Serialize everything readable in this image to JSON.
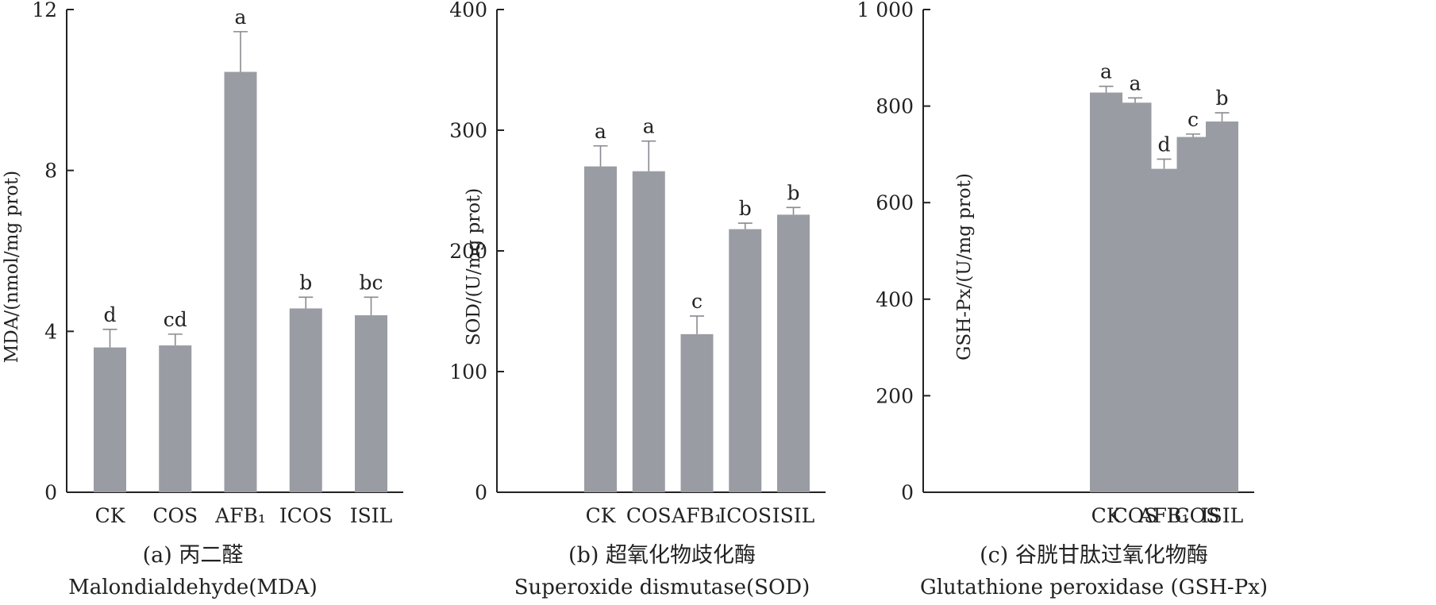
{
  "chart_data": [
    {
      "type": "bar",
      "categories": [
        "CK",
        "COS",
        "AFB₁",
        "ICOS",
        "ISIL"
      ],
      "values": [
        3.6,
        3.65,
        10.45,
        4.57,
        4.4
      ],
      "errors": [
        0.45,
        0.28,
        1.0,
        0.28,
        0.45
      ],
      "letters": [
        "d",
        "cd",
        "a",
        "b",
        "bc"
      ],
      "ylabel": "MDA/(nmol/mg prot)",
      "ylim": [
        0,
        12
      ],
      "yticks": [
        "0",
        "4",
        "8",
        "12"
      ],
      "caption_cn": "(a) 丙二醛",
      "caption_en": "Malondialdehyde(MDA)",
      "bar_color": "#9a9ca3"
    },
    {
      "type": "bar",
      "categories": [
        "CK",
        "COS",
        "AFB₁",
        "ICOS",
        "ISIL"
      ],
      "values": [
        270,
        266,
        131,
        218,
        230
      ],
      "errors": [
        17,
        25,
        15,
        5,
        6
      ],
      "letters": [
        "a",
        "a",
        "c",
        "b",
        "b"
      ],
      "ylabel": "SOD/(U/mg prot)",
      "ylim": [
        0,
        400
      ],
      "yticks": [
        "0",
        "100",
        "200",
        "300",
        "400"
      ],
      "caption_cn": "(b) 超氧化物歧化酶",
      "caption_en": "Superoxide dismutase(SOD)",
      "bar_color": "#9a9ca3"
    },
    {
      "type": "bar",
      "categories": [
        "CK",
        "COS",
        "AFB₁",
        "ICOS",
        "ISIL"
      ],
      "values": [
        828,
        807,
        670,
        736,
        768
      ],
      "errors": [
        13,
        10,
        20,
        6,
        18
      ],
      "letters": [
        "a",
        "a",
        "d",
        "c",
        "b"
      ],
      "ylabel": "GSH-Px/(U/mg prot)",
      "ylim": [
        0,
        1000
      ],
      "yticks": [
        "0",
        "200",
        "400",
        "600",
        "800",
        "1 000"
      ],
      "caption_cn": "(c) 谷胱甘肽过氧化物酶",
      "caption_en": "Glutathione peroxidase (GSH-Px)",
      "bar_color": "#9a9ca3"
    }
  ]
}
